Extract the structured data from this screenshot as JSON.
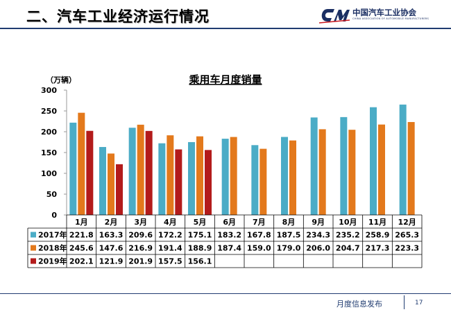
{
  "header": {
    "title": "二、汽车工业经济运行情况",
    "logo_text": "中国汽车工业协会",
    "logo_subtitle": "CHINA ASSOCIATION OF AUTOMOBILE MANUFACTURERS"
  },
  "footer": {
    "label": "月度信息发布",
    "page": "17"
  },
  "colors": {
    "2017": "#4bacc6",
    "2018": "#e3791c",
    "2019": "#b31b1b",
    "header_rule": "#1f3b70"
  },
  "chart_data": {
    "type": "bar",
    "title": "乘用车月度销量",
    "ylabel": "（万辆）",
    "ylim": [
      0,
      300
    ],
    "yticks": [
      0,
      50,
      100,
      150,
      200,
      250,
      300
    ],
    "grid": false,
    "legend": "data-table-left",
    "categories": [
      "1月",
      "2月",
      "3月",
      "4月",
      "5月",
      "6月",
      "7月",
      "8月",
      "9月",
      "10月",
      "11月",
      "12月"
    ],
    "series": [
      {
        "name": "2017年",
        "color": "#4bacc6",
        "values": [
          221.8,
          163.3,
          209.6,
          172.2,
          175.1,
          183.2,
          167.8,
          187.5,
          234.3,
          235.2,
          258.9,
          265.3
        ]
      },
      {
        "name": "2018年",
        "color": "#e3791c",
        "values": [
          245.6,
          147.6,
          216.9,
          191.4,
          188.9,
          187.4,
          159.0,
          179.0,
          206.0,
          204.7,
          217.3,
          223.3
        ]
      },
      {
        "name": "2019年",
        "color": "#b31b1b",
        "values": [
          202.1,
          121.9,
          201.9,
          157.5,
          156.1,
          null,
          null,
          null,
          null,
          null,
          null,
          null
        ]
      }
    ]
  }
}
